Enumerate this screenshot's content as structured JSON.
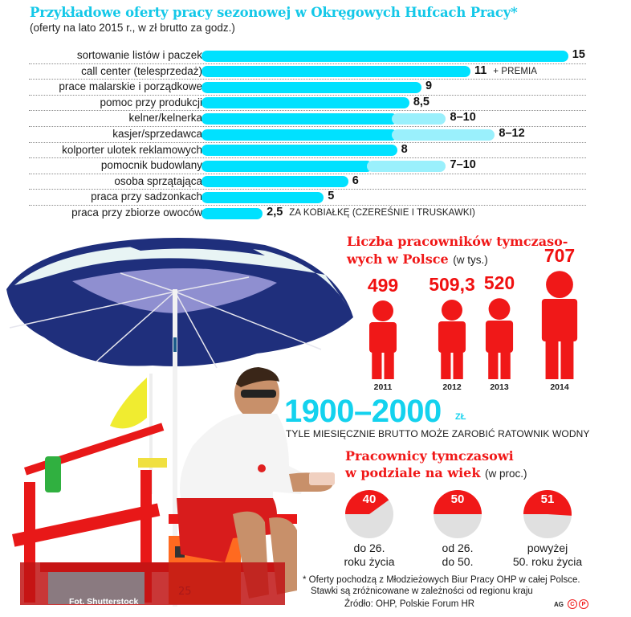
{
  "header": {
    "title": "Przykładowe oferty pracy sezonowej w Okręgowych Hufcach Pracy*",
    "subtitle": "(oferty na lato 2015 r., w zł brutto za godz.)"
  },
  "colors": {
    "bar_primary": "#00e1ff",
    "bar_range": "#9af0fc",
    "accent_red": "#f01818",
    "pie_grey": "#e0e0e0",
    "salary_cyan": "#14d2ee"
  },
  "bar_chart": {
    "rows": [
      {
        "label": "sortowanie listów i paczek",
        "value_text": "15",
        "note": ""
      },
      {
        "label": "call center (telesprzedaż)",
        "value_text": "11",
        "note": "+ PREMIA"
      },
      {
        "label": "prace malarskie i porządkowe",
        "value_text": "9",
        "note": ""
      },
      {
        "label": "pomoc przy produkcji",
        "value_text": "8,5",
        "note": ""
      },
      {
        "label": "kelner/kelnerka",
        "value_text": "8–10",
        "note": ""
      },
      {
        "label": "kasjer/sprzedawca",
        "value_text": "8–12",
        "note": ""
      },
      {
        "label": "kolporter ulotek reklamowych",
        "value_text": "8",
        "note": ""
      },
      {
        "label": "pomocnik budowlany",
        "value_text": "7–10",
        "note": ""
      },
      {
        "label": "osoba sprzątająca",
        "value_text": "6",
        "note": ""
      },
      {
        "label": "praca przy sadzonkach",
        "value_text": "5",
        "note": ""
      },
      {
        "label": "praca przy zbiorze owoców",
        "value_text": "2,5",
        "note": "ZA KOBIAŁKĘ (CZEREŚNIE I TRUSKAWKI)"
      }
    ]
  },
  "workers": {
    "title_line1": "Liczba pracowników tymczaso-",
    "title_line2": "wych w Polsce",
    "unit": "(w tys.)",
    "items": [
      {
        "year": "2011",
        "value": "499"
      },
      {
        "year": "2012",
        "value": "509,3"
      },
      {
        "year": "2013",
        "value": "520"
      },
      {
        "year": "2014",
        "value": "707"
      }
    ]
  },
  "salary": {
    "amount": "1900–2000",
    "unit": "ZŁ",
    "note": "TYLE MIESIĘCZNIE BRUTTO MOŻE ZAROBIĆ RATOWNIK WODNY"
  },
  "age": {
    "title_line1": "Pracownicy tymczasowi",
    "title_line2": "w podziale na wiek",
    "unit": "(w proc.)",
    "items": [
      {
        "value": "40",
        "label_line1": "do 26.",
        "label_line2": "roku życia"
      },
      {
        "value": "50",
        "label_line1": "od 26.",
        "label_line2": "do 50."
      },
      {
        "value": "51",
        "label_line1": "powyżej",
        "label_line2": "50. roku życia"
      }
    ]
  },
  "footer": {
    "footnote_line1": "* Oferty pochodzą z Młodzieżowych Biur Pracy OHP w całej Polsce.",
    "footnote_line2": "Stawki są zróżnicowane w zależności od regionu kraju",
    "source": "Źródło: OHP, Polskie Forum HR",
    "author": "AG",
    "copyright_c": "C",
    "copyright_p": "P"
  },
  "photo": {
    "credit": "Fot. Shutterstock",
    "box_number": "25"
  },
  "chart_data": [
    {
      "type": "bar",
      "title": "Przykładowe oferty pracy sezonowej w Okręgowych Hufcach Pracy*",
      "subtitle": "(oferty na lato 2015 r., w zł brutto za godz.)",
      "orientation": "horizontal",
      "xlabel": "",
      "ylabel": "zł brutto za godz.",
      "categories": [
        "sortowanie listów i paczek",
        "call center (telesprzedaż)",
        "prace malarskie i porządkowe",
        "pomoc przy produkcji",
        "kelner/kelnerka",
        "kasjer/sprzedawca",
        "kolporter ulotek reklamowych",
        "pomocnik budowlany",
        "osoba sprzątająca",
        "praca przy sadzonkach",
        "praca przy zbiorze owoców"
      ],
      "series": [
        {
          "name": "min",
          "values": [
            15,
            11,
            9,
            8.5,
            8,
            8,
            8,
            7,
            6,
            5,
            2.5
          ]
        },
        {
          "name": "max",
          "values": [
            15,
            11,
            9,
            8.5,
            10,
            12,
            8,
            10,
            6,
            5,
            2.5
          ]
        }
      ],
      "annotations": [
        "11 + PREMIA",
        "2,5 ZA KOBIAŁKĘ (CZEREŚNIE I TRUSKAWKI)"
      ],
      "grid": false,
      "xlim": [
        0,
        15
      ]
    },
    {
      "type": "bar",
      "title": "Liczba pracowników tymczasowych w Polsce (w tys.)",
      "style": "pictogram",
      "categories": [
        "2011",
        "2012",
        "2013",
        "2014"
      ],
      "values": [
        499,
        509.3,
        520,
        707
      ],
      "ylabel": "tys."
    },
    {
      "type": "pie",
      "title": "Pracownicy tymczasowi w podziale na wiek (w proc.)",
      "categories": [
        "do 26. roku życia",
        "od 26. do 50.",
        "powyżej 50. roku życia"
      ],
      "values": [
        40,
        50,
        51
      ]
    }
  ]
}
